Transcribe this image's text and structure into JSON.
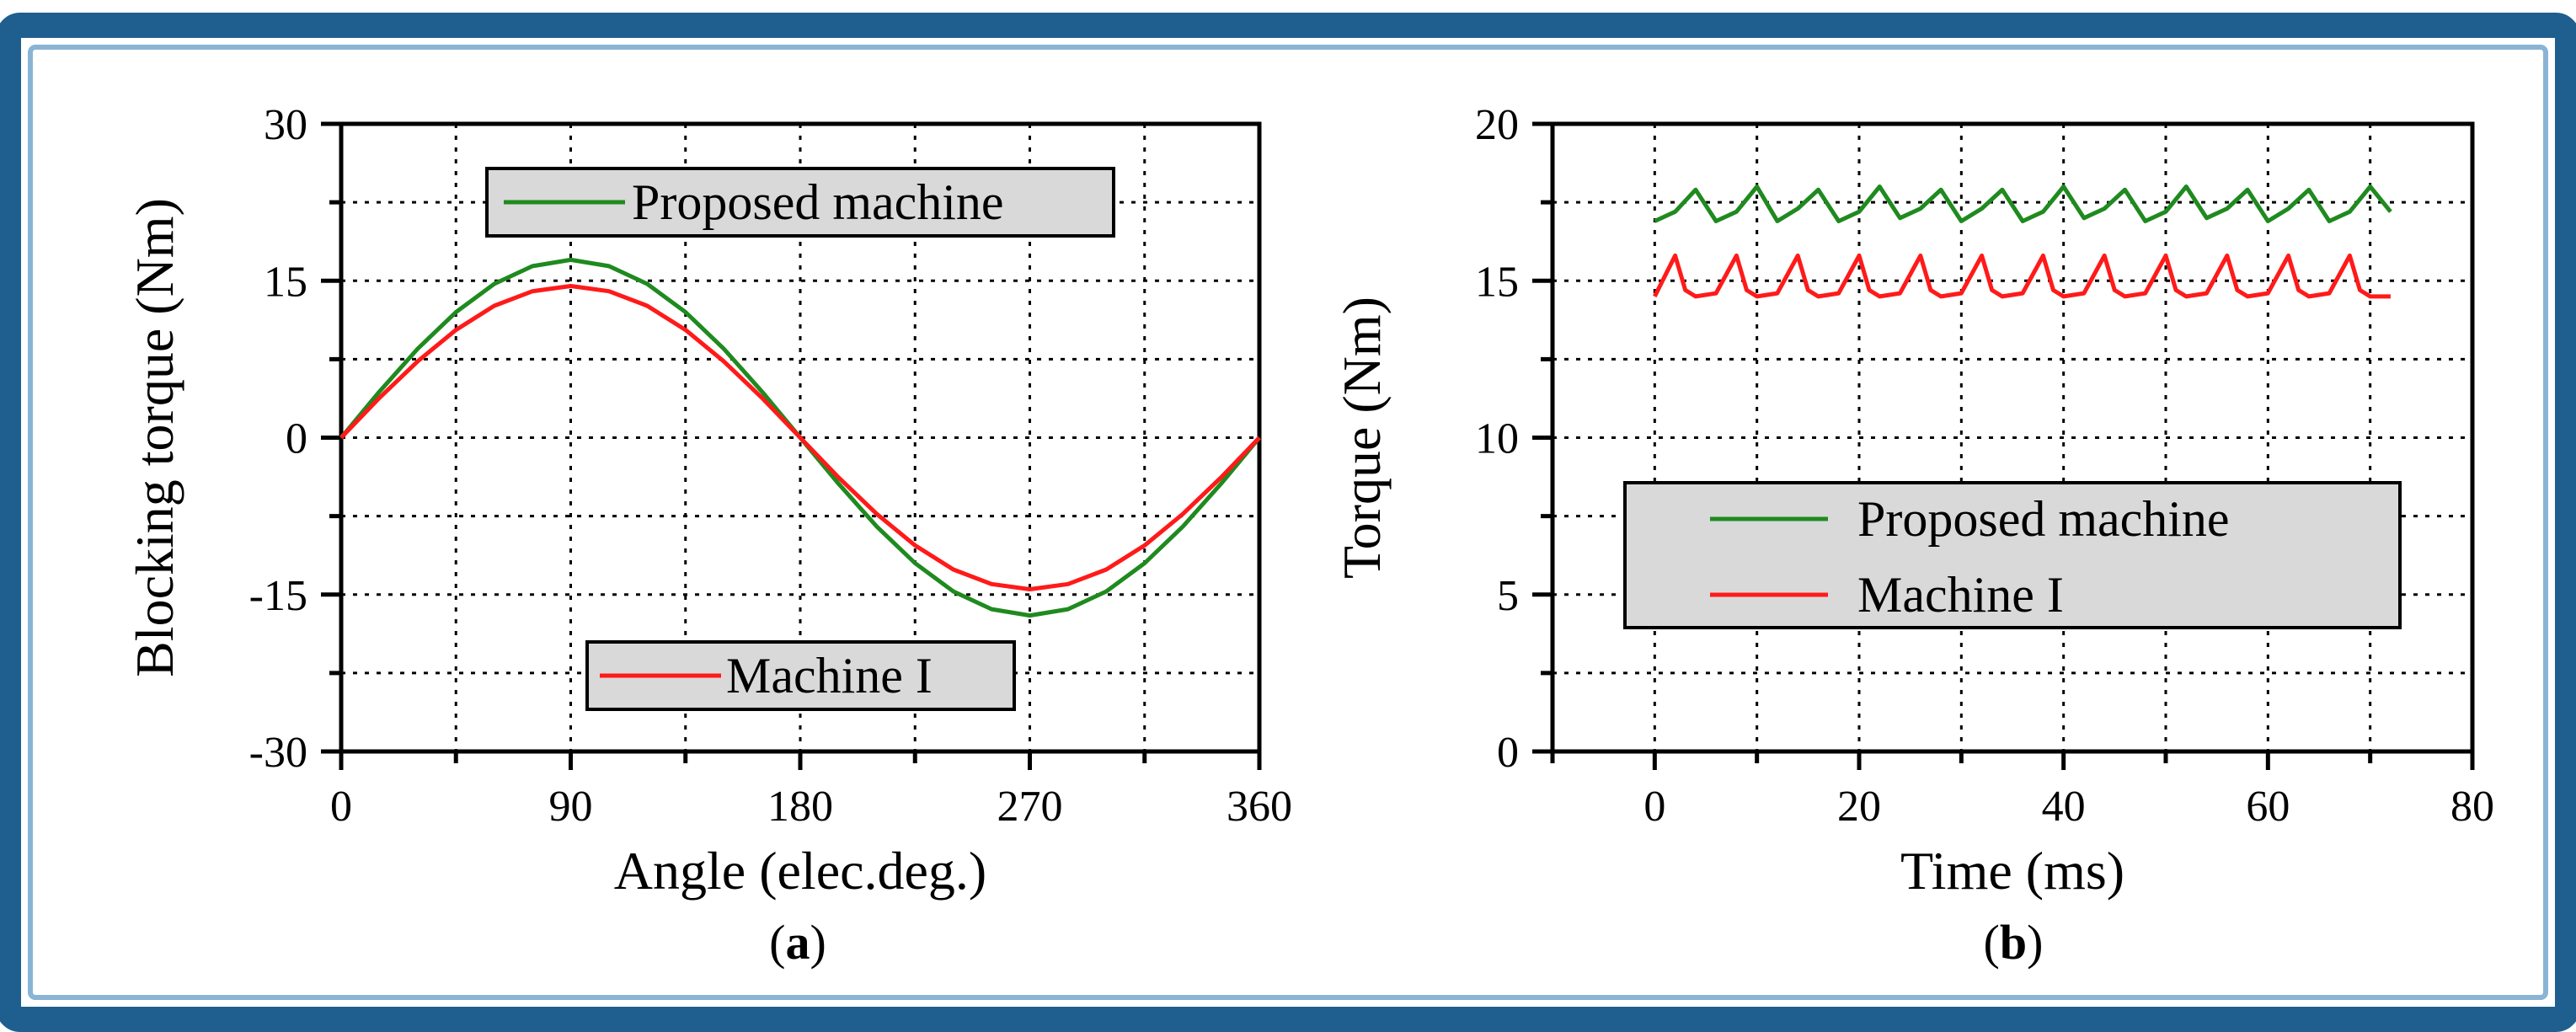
{
  "colors": {
    "frame_border": "#1f5f8f",
    "background": "#ffffff",
    "legend_fill": "#d9d9d9",
    "green": "#1f8a1f",
    "red": "#ff1a1a"
  },
  "panels": {
    "a": {
      "label": "a"
    },
    "b": {
      "label": "b"
    }
  },
  "chart_data": [
    {
      "type": "line",
      "panel": "a",
      "title": "",
      "xlabel": "Angle (elec.deg.)",
      "ylabel": "Blocking torque (Nm)",
      "xlim": [
        0,
        360
      ],
      "ylim": [
        -30,
        30
      ],
      "xticks": [
        0,
        90,
        180,
        270,
        360
      ],
      "yticks": [
        30,
        15,
        0,
        -15,
        -30
      ],
      "grid": true,
      "legend": [
        {
          "label": "Proposed machine",
          "color": "#1f8a1f",
          "placement": "top-center"
        },
        {
          "label": "Machine I",
          "color": "#ff1a1a",
          "placement": "bottom-center"
        }
      ],
      "series": [
        {
          "name": "Proposed machine",
          "color": "#1f8a1f",
          "x": [
            0,
            15,
            30,
            45,
            60,
            75,
            90,
            105,
            120,
            135,
            150,
            165,
            180,
            195,
            210,
            225,
            240,
            255,
            270,
            285,
            300,
            315,
            330,
            345,
            360
          ],
          "y": [
            0,
            4.4,
            8.5,
            12.0,
            14.7,
            16.4,
            17.0,
            16.4,
            14.7,
            12.0,
            8.5,
            4.4,
            0,
            -4.4,
            -8.5,
            -12.0,
            -14.7,
            -16.4,
            -17.0,
            -16.4,
            -14.7,
            -12.0,
            -8.5,
            -4.4,
            0
          ]
        },
        {
          "name": "Machine I",
          "color": "#ff1a1a",
          "x": [
            0,
            15,
            30,
            45,
            60,
            75,
            90,
            105,
            120,
            135,
            150,
            165,
            180,
            195,
            210,
            225,
            240,
            255,
            270,
            285,
            300,
            315,
            330,
            345,
            360
          ],
          "y": [
            0,
            3.8,
            7.3,
            10.3,
            12.6,
            14.0,
            14.5,
            14.0,
            12.6,
            10.3,
            7.3,
            3.8,
            0,
            -3.8,
            -7.3,
            -10.3,
            -12.6,
            -14.0,
            -14.5,
            -14.0,
            -12.6,
            -10.3,
            -7.3,
            -3.8,
            0
          ]
        }
      ]
    },
    {
      "type": "line",
      "panel": "b",
      "title": "",
      "xlabel": "Time (ms)",
      "ylabel": "Torque (Nm)",
      "xlim": [
        -10,
        80
      ],
      "ylim": [
        0,
        20
      ],
      "xticks": [
        0,
        20,
        40,
        60,
        80
      ],
      "yticks": [
        20,
        15,
        10,
        5,
        0
      ],
      "grid": true,
      "legend": [
        {
          "label": "Proposed machine",
          "color": "#1f8a1f",
          "placement": "center-left"
        },
        {
          "label": "Machine I",
          "color": "#ff1a1a",
          "placement": "center-left"
        }
      ],
      "series": [
        {
          "name": "Proposed machine",
          "color": "#1f8a1f",
          "x": [
            0,
            2,
            4,
            6,
            8,
            10,
            12,
            14,
            16,
            18,
            20,
            22,
            24,
            26,
            28,
            30,
            32,
            34,
            36,
            38,
            40,
            42,
            44,
            46,
            48,
            50,
            52,
            54,
            56,
            58,
            60,
            62,
            64,
            66,
            68,
            70,
            72
          ],
          "y": [
            16.9,
            17.2,
            17.9,
            16.9,
            17.2,
            18.0,
            16.9,
            17.3,
            17.9,
            16.9,
            17.2,
            18.0,
            17.0,
            17.3,
            17.9,
            16.9,
            17.3,
            17.9,
            16.9,
            17.2,
            18.0,
            17.0,
            17.3,
            17.9,
            16.9,
            17.2,
            18.0,
            17.0,
            17.3,
            17.9,
            16.9,
            17.3,
            17.9,
            16.9,
            17.2,
            18.0,
            17.2
          ]
        },
        {
          "name": "Machine I",
          "color": "#ff1a1a",
          "x": [
            0,
            2,
            3,
            4,
            6,
            8,
            9,
            10,
            12,
            14,
            15,
            16,
            18,
            20,
            21,
            22,
            24,
            26,
            27,
            28,
            30,
            32,
            33,
            34,
            36,
            38,
            39,
            40,
            42,
            44,
            45,
            46,
            48,
            50,
            51,
            52,
            54,
            56,
            57,
            58,
            60,
            62,
            63,
            64,
            66,
            68,
            69,
            70,
            72
          ],
          "y": [
            14.5,
            15.8,
            14.7,
            14.5,
            14.6,
            15.8,
            14.7,
            14.5,
            14.6,
            15.8,
            14.7,
            14.5,
            14.6,
            15.8,
            14.7,
            14.5,
            14.6,
            15.8,
            14.7,
            14.5,
            14.6,
            15.8,
            14.7,
            14.5,
            14.6,
            15.8,
            14.7,
            14.5,
            14.6,
            15.8,
            14.7,
            14.5,
            14.6,
            15.8,
            14.7,
            14.5,
            14.6,
            15.8,
            14.7,
            14.5,
            14.6,
            15.8,
            14.7,
            14.5,
            14.6,
            15.8,
            14.7,
            14.5,
            14.5
          ]
        }
      ]
    }
  ]
}
